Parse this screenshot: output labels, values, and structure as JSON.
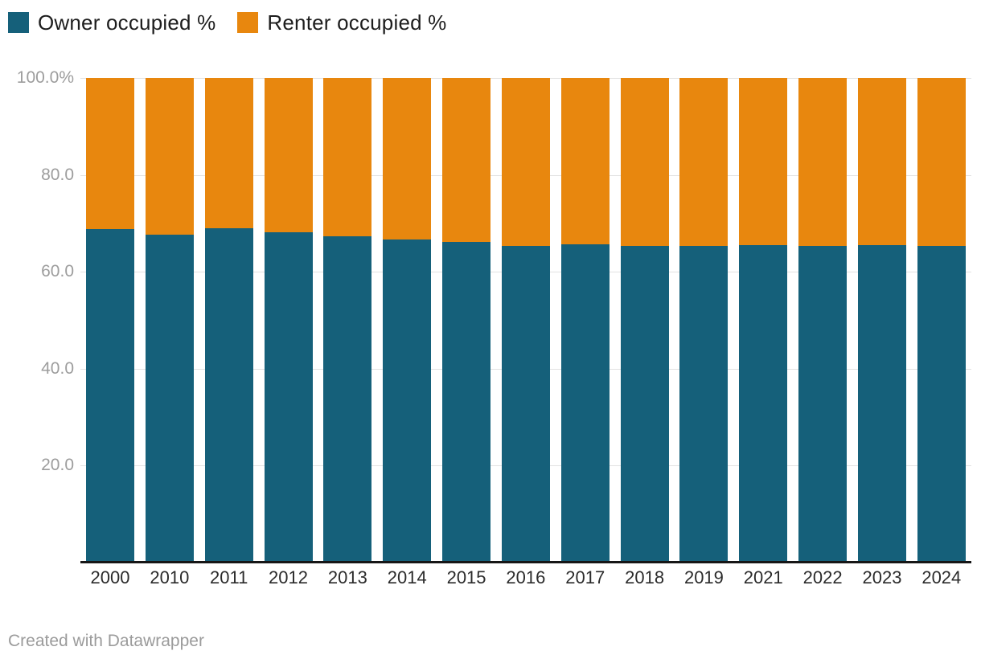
{
  "colors": {
    "owner": "#15607a",
    "renter": "#e8870e",
    "gridline": "#e2e2e2",
    "axis_line": "#161616",
    "y_label_text": "#9d9d9d",
    "x_label_text": "#2b2b2b",
    "legend_text": "#1d1d1d",
    "footer_text": "#9b9b9b",
    "background": "#ffffff"
  },
  "legend": {
    "items": [
      {
        "label": "Owner occupied %",
        "color_key": "owner"
      },
      {
        "label": "Renter occupied %",
        "color_key": "renter"
      }
    ]
  },
  "footer": {
    "credit": "Created with Datawrapper"
  },
  "chart_data": {
    "type": "bar",
    "stacked": true,
    "stack_total": 100,
    "title": "",
    "xlabel": "",
    "ylabel": "",
    "ylim": [
      0,
      100
    ],
    "grid": "horizontal",
    "legend_position": "top-left",
    "categories": [
      "2000",
      "2010",
      "2011",
      "2012",
      "2013",
      "2014",
      "2015",
      "2016",
      "2017",
      "2018",
      "2019",
      "2021",
      "2022",
      "2023",
      "2024"
    ],
    "series": [
      {
        "name": "Owner occupied %",
        "color_key": "owner",
        "values": [
          68.8,
          67.6,
          69.0,
          68.1,
          67.3,
          66.6,
          66.1,
          65.4,
          65.6,
          65.3,
          65.3,
          65.5,
          65.3,
          65.5,
          65.3
        ]
      },
      {
        "name": "Renter occupied %",
        "color_key": "renter",
        "values": [
          31.2,
          32.4,
          31.0,
          31.9,
          32.7,
          33.4,
          33.9,
          34.6,
          34.4,
          34.7,
          34.7,
          34.5,
          34.7,
          34.5,
          34.7
        ]
      }
    ],
    "y_ticks": [
      {
        "value": 20,
        "label": "20.0"
      },
      {
        "value": 40,
        "label": "40.0"
      },
      {
        "value": 60,
        "label": "60.0"
      },
      {
        "value": 80,
        "label": "80.0"
      },
      {
        "value": 100,
        "label": "100.0%"
      }
    ]
  }
}
